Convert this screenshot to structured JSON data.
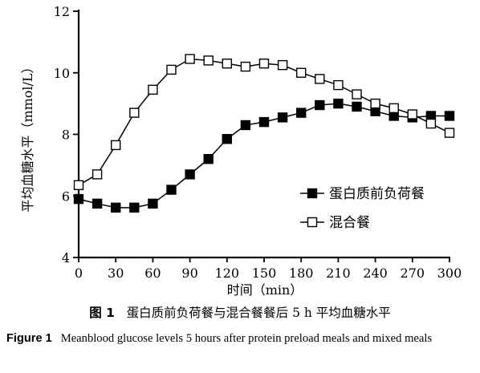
{
  "chart_data": {
    "type": "line",
    "xlabel": "时间（min）",
    "ylabel": "平均血糖水平（mmol/L）",
    "xlim": [
      0,
      300
    ],
    "ylim": [
      4,
      12
    ],
    "xticks": [
      0,
      30,
      60,
      90,
      120,
      150,
      180,
      210,
      240,
      270,
      300
    ],
    "yticks": [
      4,
      6,
      8,
      10,
      12
    ],
    "grid": false,
    "legend_position": "lower-right",
    "series": [
      {
        "name": "蛋白质前负荷餐",
        "marker": "filled-square",
        "color": "#000000",
        "x": [
          0,
          15,
          30,
          45,
          60,
          75,
          90,
          105,
          120,
          135,
          150,
          165,
          180,
          195,
          210,
          225,
          240,
          255,
          270,
          285,
          300
        ],
        "values": [
          5.9,
          5.75,
          5.62,
          5.62,
          5.75,
          6.2,
          6.7,
          7.2,
          7.85,
          8.3,
          8.4,
          8.55,
          8.7,
          8.95,
          9.0,
          8.9,
          8.75,
          8.6,
          8.55,
          8.6,
          8.6
        ]
      },
      {
        "name": "混合餐",
        "marker": "open-square",
        "color": "#000000",
        "x": [
          0,
          15,
          30,
          45,
          60,
          75,
          90,
          105,
          120,
          135,
          150,
          165,
          180,
          195,
          210,
          225,
          240,
          255,
          270,
          285,
          300
        ],
        "values": [
          6.35,
          6.7,
          7.65,
          8.7,
          9.45,
          10.1,
          10.45,
          10.4,
          10.3,
          10.2,
          10.3,
          10.25,
          10.0,
          9.8,
          9.6,
          9.3,
          9.0,
          8.85,
          8.65,
          8.35,
          8.05
        ]
      }
    ]
  },
  "caption": {
    "cn_label": "图 1",
    "cn_text": "蛋白质前负荷餐与混合餐餐后 5 h 平均血糖水平",
    "en_label": "Figure 1",
    "en_text": "Meanblood glucose levels 5 hours after protein preload meals and mixed meals"
  }
}
